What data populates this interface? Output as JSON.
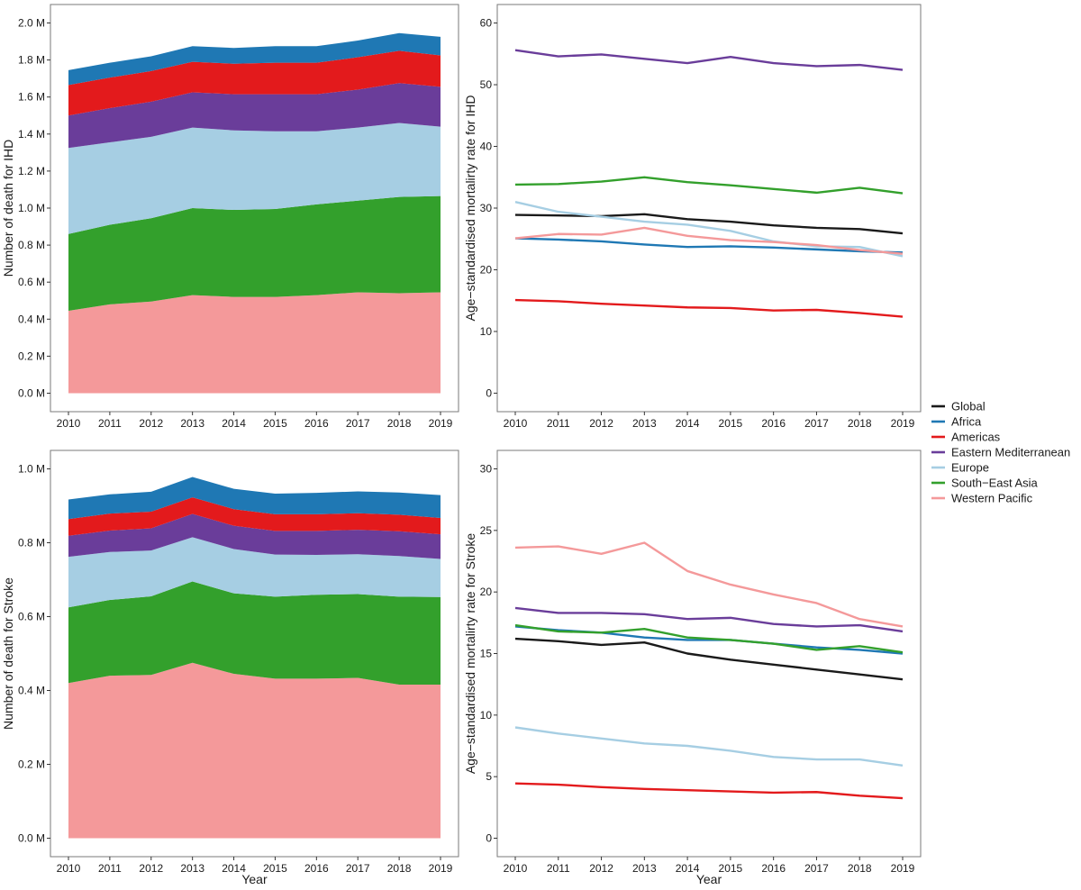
{
  "legend": {
    "items": [
      {
        "name": "Global",
        "color": "#1a1a1a"
      },
      {
        "name": "Africa",
        "color": "#1f78b4"
      },
      {
        "name": "Americas",
        "color": "#e31a1c"
      },
      {
        "name": "Eastern Mediterranean",
        "color": "#6a3d9a"
      },
      {
        "name": "Europe",
        "color": "#a6cee3"
      },
      {
        "name": "South−East Asia",
        "color": "#33a02c"
      },
      {
        "name": "Western Pacific",
        "color": "#f4999a"
      }
    ]
  },
  "chart_data": [
    {
      "id": "ihd-deaths",
      "type": "area",
      "stacked": true,
      "title": "",
      "xlabel": "",
      "ylabel": "Number of death for IHD",
      "x": [
        2010,
        2011,
        2012,
        2013,
        2014,
        2015,
        2016,
        2017,
        2018,
        2019
      ],
      "xticks": [
        "2010",
        "2011",
        "2012",
        "2013",
        "2014",
        "2015",
        "2016",
        "2017",
        "2018",
        "2019"
      ],
      "ylim": [
        0,
        2.0
      ],
      "yticks": [
        0,
        0.2,
        0.4,
        0.6,
        0.8,
        1.0,
        1.2,
        1.4,
        1.6,
        1.8,
        2.0
      ],
      "yticklabels": [
        "0.0 M",
        "0.2 M",
        "0.4 M",
        "0.6 M",
        "0.8 M",
        "1.0 M",
        "1.2 M",
        "1.4 M",
        "1.6 M",
        "1.8 M",
        "2.0 M"
      ],
      "series": [
        {
          "name": "Western Pacific",
          "values": [
            0.445,
            0.48,
            0.495,
            0.53,
            0.52,
            0.52,
            0.53,
            0.545,
            0.54,
            0.545
          ]
        },
        {
          "name": "South−East Asia",
          "values": [
            0.415,
            0.43,
            0.45,
            0.47,
            0.47,
            0.475,
            0.49,
            0.495,
            0.52,
            0.52
          ]
        },
        {
          "name": "Europe",
          "values": [
            0.465,
            0.445,
            0.44,
            0.435,
            0.43,
            0.42,
            0.395,
            0.395,
            0.4,
            0.375
          ]
        },
        {
          "name": "Eastern Mediterranean",
          "values": [
            0.175,
            0.185,
            0.19,
            0.19,
            0.195,
            0.2,
            0.2,
            0.205,
            0.215,
            0.215
          ]
        },
        {
          "name": "Americas",
          "values": [
            0.165,
            0.165,
            0.165,
            0.165,
            0.165,
            0.17,
            0.17,
            0.175,
            0.175,
            0.17
          ]
        },
        {
          "name": "Africa",
          "values": [
            0.08,
            0.08,
            0.08,
            0.085,
            0.085,
            0.09,
            0.09,
            0.09,
            0.095,
            0.1
          ]
        }
      ]
    },
    {
      "id": "ihd-rate",
      "type": "line",
      "title": "",
      "xlabel": "",
      "ylabel": "Age−standardised mortalirty rate for IHD",
      "x": [
        2010,
        2011,
        2012,
        2013,
        2014,
        2015,
        2016,
        2017,
        2018,
        2019
      ],
      "xticks": [
        "2010",
        "2011",
        "2012",
        "2013",
        "2014",
        "2015",
        "2016",
        "2017",
        "2018",
        "2019"
      ],
      "ylim": [
        -3,
        63
      ],
      "yticks": [
        0,
        10,
        20,
        30,
        40,
        50,
        60
      ],
      "yticklabels": [
        "0",
        "10",
        "20",
        "30",
        "40",
        "50",
        "60"
      ],
      "series": [
        {
          "name": "Global",
          "values": [
            28.9,
            28.8,
            28.7,
            29.0,
            28.2,
            27.8,
            27.2,
            26.8,
            26.6,
            25.9
          ]
        },
        {
          "name": "Africa",
          "values": [
            25.1,
            24.9,
            24.6,
            24.1,
            23.7,
            23.8,
            23.6,
            23.3,
            23.0,
            22.8
          ]
        },
        {
          "name": "Americas",
          "values": [
            15.1,
            14.9,
            14.5,
            14.2,
            13.9,
            13.8,
            13.4,
            13.5,
            13.0,
            12.4
          ]
        },
        {
          "name": "Eastern Mediterranean",
          "values": [
            55.6,
            54.6,
            54.9,
            54.2,
            53.5,
            54.5,
            53.5,
            53.0,
            53.2,
            52.4
          ]
        },
        {
          "name": "Europe",
          "values": [
            31.0,
            29.4,
            28.6,
            27.8,
            27.3,
            26.3,
            24.6,
            23.8,
            23.7,
            22.2
          ]
        },
        {
          "name": "South−East Asia",
          "values": [
            33.8,
            33.9,
            34.3,
            35.0,
            34.2,
            33.7,
            33.1,
            32.5,
            33.3,
            32.4
          ]
        },
        {
          "name": "Western Pacific",
          "values": [
            25.1,
            25.8,
            25.7,
            26.8,
            25.5,
            24.8,
            24.5,
            24.0,
            23.2,
            22.6
          ]
        }
      ]
    },
    {
      "id": "stroke-deaths",
      "type": "area",
      "stacked": true,
      "title": "",
      "xlabel": "Year",
      "ylabel": "Number of death for Stroke",
      "x": [
        2010,
        2011,
        2012,
        2013,
        2014,
        2015,
        2016,
        2017,
        2018,
        2019
      ],
      "xticks": [
        "2010",
        "2011",
        "2012",
        "2013",
        "2014",
        "2015",
        "2016",
        "2017",
        "2018",
        "2019"
      ],
      "ylim": [
        0,
        1.0
      ],
      "yticks": [
        0,
        0.2,
        0.4,
        0.6,
        0.8,
        1.0
      ],
      "yticklabels": [
        "0.0 M",
        "0.2 M",
        "0.4 M",
        "0.6 M",
        "0.8 M",
        "1.0 M"
      ],
      "series": [
        {
          "name": "Western Pacific",
          "values": [
            0.42,
            0.44,
            0.442,
            0.475,
            0.445,
            0.432,
            0.432,
            0.434,
            0.416,
            0.416
          ]
        },
        {
          "name": "South−East Asia",
          "values": [
            0.205,
            0.205,
            0.213,
            0.22,
            0.218,
            0.222,
            0.227,
            0.227,
            0.238,
            0.237
          ]
        },
        {
          "name": "Europe",
          "values": [
            0.137,
            0.13,
            0.124,
            0.12,
            0.12,
            0.114,
            0.108,
            0.108,
            0.11,
            0.103
          ]
        },
        {
          "name": "Eastern Mediterranean",
          "values": [
            0.057,
            0.058,
            0.06,
            0.063,
            0.063,
            0.064,
            0.065,
            0.066,
            0.067,
            0.067
          ]
        },
        {
          "name": "Americas",
          "values": [
            0.045,
            0.046,
            0.045,
            0.045,
            0.045,
            0.045,
            0.045,
            0.045,
            0.045,
            0.044
          ]
        },
        {
          "name": "Africa",
          "values": [
            0.053,
            0.052,
            0.054,
            0.055,
            0.055,
            0.056,
            0.058,
            0.059,
            0.06,
            0.062
          ]
        }
      ]
    },
    {
      "id": "stroke-rate",
      "type": "line",
      "title": "",
      "xlabel": "Year",
      "ylabel": "Age−standardised mortalirty rate for Stroke",
      "x": [
        2010,
        2011,
        2012,
        2013,
        2014,
        2015,
        2016,
        2017,
        2018,
        2019
      ],
      "xticks": [
        "2010",
        "2011",
        "2012",
        "2013",
        "2014",
        "2015",
        "2016",
        "2017",
        "2018",
        "2019"
      ],
      "ylim": [
        -1.5,
        31.5
      ],
      "yticks": [
        0,
        5,
        10,
        15,
        20,
        25,
        30
      ],
      "yticklabels": [
        "0",
        "5",
        "10",
        "15",
        "20",
        "25",
        "30"
      ],
      "series": [
        {
          "name": "Global",
          "values": [
            16.2,
            16.0,
            15.7,
            15.9,
            15.0,
            14.5,
            14.1,
            13.7,
            13.3,
            12.9
          ]
        },
        {
          "name": "Africa",
          "values": [
            17.2,
            16.9,
            16.7,
            16.3,
            16.1,
            16.1,
            15.8,
            15.5,
            15.3,
            15.0
          ]
        },
        {
          "name": "Americas",
          "values": [
            4.45,
            4.35,
            4.15,
            4.0,
            3.9,
            3.8,
            3.7,
            3.75,
            3.45,
            3.25
          ]
        },
        {
          "name": "Eastern Mediterranean",
          "values": [
            18.7,
            18.3,
            18.3,
            18.2,
            17.8,
            17.9,
            17.4,
            17.2,
            17.3,
            16.8
          ]
        },
        {
          "name": "Europe",
          "values": [
            9.0,
            8.5,
            8.1,
            7.7,
            7.5,
            7.1,
            6.6,
            6.4,
            6.4,
            5.9
          ]
        },
        {
          "name": "South−East Asia",
          "values": [
            17.3,
            16.8,
            16.7,
            17.0,
            16.3,
            16.1,
            15.8,
            15.3,
            15.6,
            15.1
          ]
        },
        {
          "name": "Western Pacific",
          "values": [
            23.6,
            23.7,
            23.1,
            24.0,
            21.7,
            20.6,
            19.8,
            19.1,
            17.8,
            17.2
          ]
        }
      ]
    }
  ]
}
